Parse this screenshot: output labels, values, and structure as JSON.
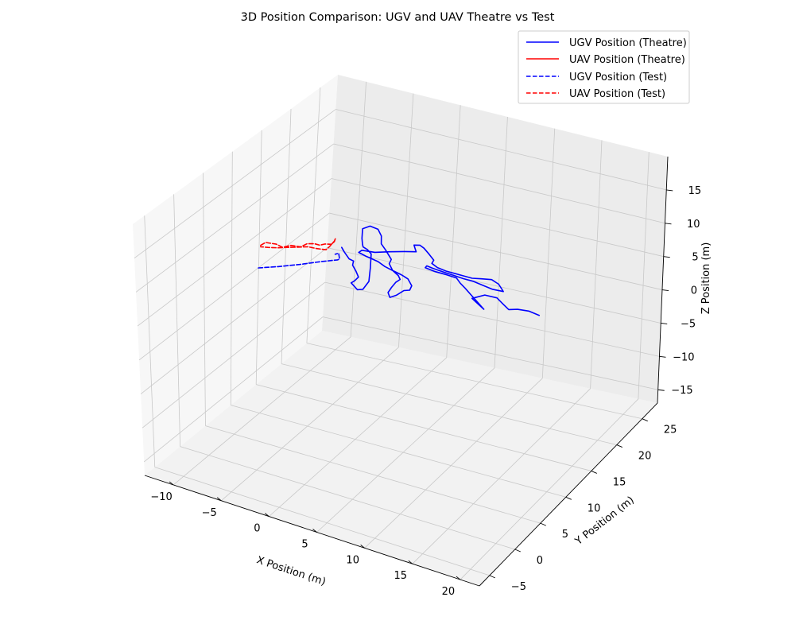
{
  "chart_data": {
    "type": "line",
    "projection": "3d",
    "title": "3D Position Comparison: UGV and UAV Theatre vs Test",
    "xlabel": "X Position (m)",
    "ylabel": "Y Position (m)",
    "zlabel": "Z Position (m)",
    "xlim": [
      -13,
      22
    ],
    "ylim": [
      -7,
      28
    ],
    "zlim": [
      -17,
      20
    ],
    "xticks": [
      "−10",
      "−5",
      "0",
      "5",
      "10",
      "15",
      "20"
    ],
    "yticks": [
      "−5",
      "0",
      "5",
      "10",
      "15",
      "20",
      "25"
    ],
    "zticks": [
      "−15",
      "−10",
      "−5",
      "0",
      "5",
      "10",
      "15"
    ],
    "grid": true,
    "legend_position": "top-right",
    "series": [
      {
        "name": "UGV Position (Theatre)",
        "color": "#0000ff",
        "dash": "solid",
        "points": [
          [
            -3.1,
            12.6,
            8.0
          ],
          [
            -3.0,
            12.9,
            7.2
          ],
          [
            -2.6,
            13.1,
            6.2
          ],
          [
            -2.3,
            13.4,
            5.8
          ],
          [
            -2.5,
            13.6,
            5.0
          ],
          [
            -2.3,
            13.9,
            4.0
          ],
          [
            -2.2,
            14.2,
            3.0
          ],
          [
            -2.6,
            14.2,
            2.3
          ],
          [
            -3.0,
            14.3,
            1.8
          ],
          [
            -2.8,
            14.5,
            1.3
          ],
          [
            -2.5,
            14.6,
            0.8
          ],
          [
            -2.1,
            14.9,
            0.8
          ],
          [
            -1.6,
            15.1,
            2.0
          ],
          [
            -1.6,
            15.3,
            3.8
          ],
          [
            -1.6,
            15.4,
            5.8
          ],
          [
            -2.0,
            15.4,
            6.3
          ],
          [
            -2.4,
            15.3,
            6.6
          ],
          [
            -2.3,
            15.0,
            7.2
          ],
          [
            -2.2,
            14.7,
            8.3
          ],
          [
            -2.1,
            14.6,
            9.8
          ],
          [
            -1.5,
            14.9,
            10.2
          ],
          [
            -0.9,
            15.3,
            9.7
          ],
          [
            -0.7,
            15.6,
            8.6
          ],
          [
            -0.8,
            15.8,
            7.3
          ],
          [
            -0.5,
            16.1,
            6.3
          ],
          [
            0.0,
            16.3,
            5.0
          ],
          [
            -0.2,
            16.3,
            4.3
          ],
          [
            0.0,
            16.6,
            3.2
          ],
          [
            0.5,
            16.8,
            2.5
          ],
          [
            0.7,
            16.8,
            2.0
          ],
          [
            0.3,
            16.7,
            1.5
          ],
          [
            0.0,
            16.5,
            0.8
          ],
          [
            -0.3,
            16.4,
            0.0
          ],
          [
            -0.2,
            16.6,
            -0.8
          ],
          [
            0.3,
            16.9,
            -0.5
          ],
          [
            0.9,
            17.2,
            0.2
          ],
          [
            1.4,
            17.4,
            0.3
          ],
          [
            1.6,
            17.4,
            1.0
          ],
          [
            1.4,
            17.0,
            2.2
          ],
          [
            0.9,
            16.6,
            2.9
          ],
          [
            0.3,
            16.1,
            3.6
          ],
          [
            -0.2,
            15.5,
            4.4
          ],
          [
            -0.7,
            15.1,
            5.2
          ],
          [
            -1.1,
            14.6,
            5.8
          ],
          [
            -1.5,
            14.2,
            6.3
          ],
          [
            -2.0,
            13.8,
            6.9
          ],
          [
            -1.9,
            14.2,
            7.0
          ],
          [
            -1.0,
            15.0,
            6.5
          ],
          [
            0.0,
            16.0,
            6.3
          ],
          [
            1.0,
            16.9,
            6.1
          ],
          [
            1.9,
            17.5,
            6.0
          ],
          [
            1.7,
            17.6,
            6.4
          ],
          [
            1.6,
            17.6,
            6.8
          ],
          [
            2.2,
            17.6,
            7.0
          ],
          [
            2.7,
            17.5,
            6.8
          ],
          [
            3.3,
            17.4,
            6.2
          ],
          [
            3.8,
            17.4,
            5.5
          ],
          [
            3.5,
            17.6,
            4.8
          ],
          [
            4.1,
            17.6,
            4.4
          ],
          [
            5.0,
            17.6,
            4.2
          ],
          [
            5.9,
            17.8,
            4.0
          ],
          [
            6.6,
            18.0,
            3.8
          ],
          [
            7.4,
            18.2,
            3.6
          ],
          [
            8.2,
            18.5,
            3.6
          ],
          [
            9.1,
            18.8,
            3.6
          ],
          [
            9.8,
            18.9,
            3.1
          ],
          [
            10.3,
            18.9,
            2.2
          ],
          [
            9.3,
            18.6,
            2.4
          ],
          [
            8.4,
            18.4,
            2.8
          ],
          [
            7.5,
            18.2,
            3.2
          ],
          [
            6.6,
            18.0,
            3.4
          ],
          [
            5.6,
            17.8,
            3.7
          ],
          [
            4.6,
            17.6,
            4.0
          ],
          [
            3.7,
            17.4,
            4.3
          ],
          [
            3.2,
            17.2,
            4.6
          ],
          [
            3.0,
            17.3,
            4.2
          ],
          [
            4.0,
            17.4,
            3.9
          ],
          [
            5.1,
            17.6,
            3.7
          ],
          [
            6.0,
            17.8,
            3.4
          ],
          [
            6.4,
            17.8,
            2.8
          ],
          [
            6.8,
            18.0,
            2.1
          ],
          [
            7.3,
            18.2,
            1.2
          ],
          [
            7.9,
            18.4,
            0.2
          ],
          [
            8.5,
            18.6,
            -0.8
          ],
          [
            7.9,
            18.4,
            0.0
          ],
          [
            7.4,
            18.3,
            0.6
          ],
          [
            8.5,
            18.7,
            1.2
          ],
          [
            9.5,
            19.2,
            0.8
          ],
          [
            10.0,
            19.4,
            0.0
          ],
          [
            10.5,
            19.7,
            -0.9
          ],
          [
            11.2,
            20.1,
            -0.9
          ],
          [
            12.1,
            20.6,
            -1.2
          ],
          [
            13.0,
            21.0,
            -1.8
          ]
        ]
      },
      {
        "name": "UAV Position (Theatre)",
        "color": "#ff0000",
        "dash": "solid",
        "points": []
      },
      {
        "name": "UGV Position (Test)",
        "color": "#0000ff",
        "dash": "dashed",
        "points": [
          [
            -10.4,
            10.3,
            3.8
          ],
          [
            -9.5,
            10.5,
            4.1
          ],
          [
            -8.6,
            10.7,
            4.4
          ],
          [
            -7.6,
            10.9,
            4.8
          ],
          [
            -6.6,
            11.1,
            5.2
          ],
          [
            -5.5,
            11.3,
            5.7
          ],
          [
            -4.5,
            11.4,
            6.2
          ],
          [
            -3.5,
            11.6,
            6.6
          ],
          [
            -3.0,
            11.7,
            6.8
          ],
          [
            -2.8,
            11.7,
            7.0
          ],
          [
            -2.9,
            11.7,
            7.8
          ],
          [
            -3.2,
            11.6,
            7.6
          ]
        ]
      },
      {
        "name": "UAV Position (Test)",
        "color": "#ff0000",
        "dash": "dashed",
        "points": [
          [
            -10.3,
            10.5,
            7.0
          ],
          [
            -9.8,
            10.5,
            7.6
          ],
          [
            -8.8,
            10.7,
            7.6
          ],
          [
            -8.2,
            10.8,
            7.3
          ],
          [
            -7.4,
            10.9,
            7.8
          ],
          [
            -6.5,
            11.1,
            7.8
          ],
          [
            -5.9,
            11.2,
            8.4
          ],
          [
            -5.2,
            11.3,
            8.6
          ],
          [
            -4.7,
            11.4,
            8.5
          ],
          [
            -4.2,
            11.5,
            8.8
          ],
          [
            -3.6,
            11.6,
            8.9
          ],
          [
            -3.3,
            11.6,
            9.4
          ],
          [
            -3.2,
            11.6,
            9.9
          ],
          [
            -3.3,
            11.6,
            9.5
          ],
          [
            -3.8,
            11.6,
            8.5
          ],
          [
            -4.1,
            11.5,
            8.0
          ],
          [
            -5.0,
            11.4,
            7.9
          ],
          [
            -5.8,
            11.2,
            8.0
          ],
          [
            -6.8,
            11.0,
            7.7
          ],
          [
            -7.7,
            10.9,
            7.4
          ],
          [
            -8.7,
            10.7,
            7.1
          ],
          [
            -9.6,
            10.6,
            6.9
          ],
          [
            -10.3,
            10.5,
            6.8
          ]
        ]
      }
    ]
  }
}
